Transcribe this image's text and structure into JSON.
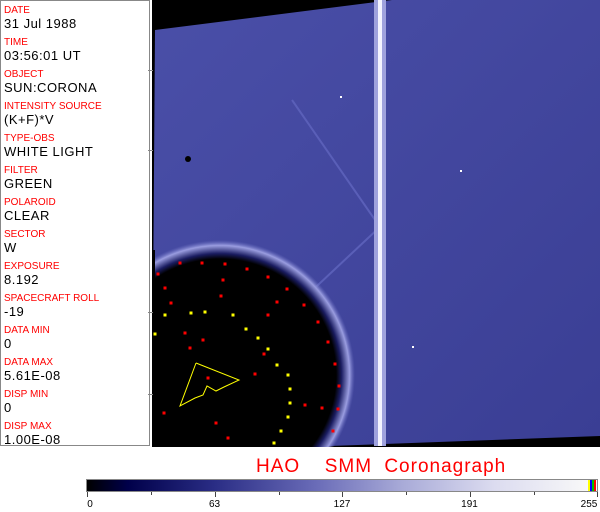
{
  "panel": [
    {
      "label": "DATE",
      "value": "31 Jul 1988"
    },
    {
      "label": "TIME",
      "value": "03:56:01 UT"
    },
    {
      "label": "OBJECT",
      "value": "SUN:CORONA"
    },
    {
      "label": "INTENSITY SOURCE",
      "value": "(K+F)*V"
    },
    {
      "label": "TYPE-OBS",
      "value": "WHITE LIGHT"
    },
    {
      "label": "FILTER",
      "value": "GREEN"
    },
    {
      "label": "POLAROID",
      "value": "CLEAR"
    },
    {
      "label": "SECTOR",
      "value": "W"
    },
    {
      "label": "EXPOSURE",
      "value": "8.192"
    },
    {
      "label": "SPACECRAFT ROLL",
      "value": "-19"
    },
    {
      "label": "DATA MIN",
      "value": "0"
    },
    {
      "label": "DATA MAX",
      "value": "5.61E-08"
    },
    {
      "label": "DISP MIN",
      "value": "0"
    },
    {
      "label": "DISP MAX",
      "value": "1.00E-08"
    }
  ],
  "title": "HAO  SMM Coronagraph",
  "colorbar": {
    "ticks": [
      "0",
      "63",
      "127",
      "191",
      "255"
    ],
    "end_colors": [
      "#ffff00",
      "#0000ff",
      "#00c000",
      "#ff0000"
    ]
  },
  "colors": {
    "label": "#ff0000",
    "corona": "#3a3f9a",
    "marker_red": "#ff0000",
    "marker_yellow": "#ffff00"
  }
}
